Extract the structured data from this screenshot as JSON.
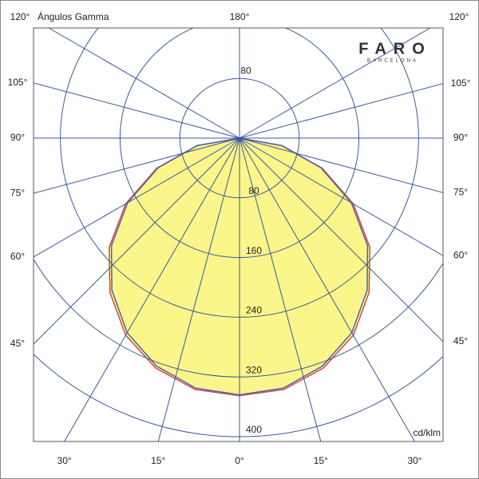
{
  "chart_data": {
    "type": "polar",
    "title": "Ángulos Gamma",
    "unit": "cd/klm",
    "logo": {
      "name": "FARO",
      "sub": "BARCELONA"
    },
    "rlim": [
      0,
      400
    ],
    "rticks": [
      80,
      160,
      240,
      320,
      400
    ],
    "angle_ticks": [
      {
        "value": -120,
        "label": "120°"
      },
      {
        "value": -105,
        "label": "105°"
      },
      {
        "value": -90,
        "label": "90°"
      },
      {
        "value": -75,
        "label": "75°"
      },
      {
        "value": -60,
        "label": "60°"
      },
      {
        "value": -45,
        "label": "45°"
      },
      {
        "value": -30,
        "label": "30°"
      },
      {
        "value": -15,
        "label": "15°"
      },
      {
        "value": 0,
        "label": "0°"
      },
      {
        "value": 15,
        "label": "15°"
      },
      {
        "value": 30,
        "label": "30°"
      },
      {
        "value": 45,
        "label": "45°"
      },
      {
        "value": 60,
        "label": "60°"
      },
      {
        "value": 75,
        "label": "75°"
      },
      {
        "value": 90,
        "label": "90°"
      },
      {
        "value": 105,
        "label": "105°"
      },
      {
        "value": 120,
        "label": "120°"
      },
      {
        "value": 180,
        "label": "180°"
      }
    ],
    "fill": "#fbf58a",
    "angles": [
      0,
      10,
      20,
      30,
      40,
      50,
      60,
      70,
      80,
      90
    ],
    "series": [
      {
        "color": "#d04a4a",
        "values": [
          345,
          342,
          328,
          305,
          270,
          228,
          176,
          118,
          58,
          0
        ]
      },
      {
        "color": "#5060b0",
        "values": [
          344,
          340,
          325,
          301,
          266,
          224,
          173,
          116,
          57,
          0
        ]
      }
    ]
  }
}
